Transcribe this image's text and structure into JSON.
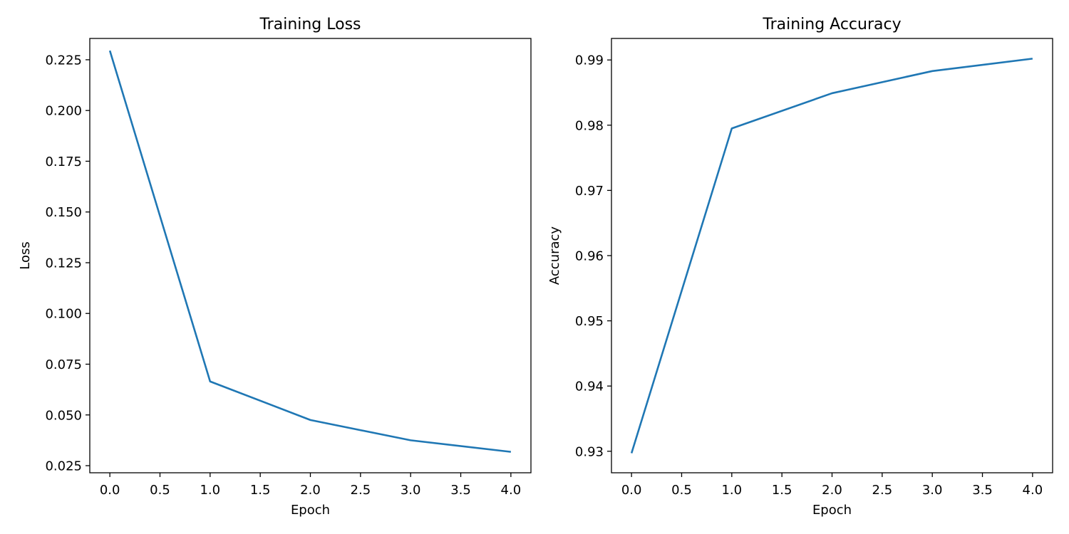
{
  "chart_data": [
    {
      "type": "line",
      "title": "Training Loss",
      "xlabel": "Epoch",
      "ylabel": "Loss",
      "xlim": [
        -0.2,
        4.2
      ],
      "ylim": [
        0.0215,
        0.2355
      ],
      "xticks": [
        0.0,
        0.5,
        1.0,
        1.5,
        2.0,
        2.5,
        3.0,
        3.5,
        4.0
      ],
      "xtick_labels": [
        "0.0",
        "0.5",
        "1.0",
        "1.5",
        "2.0",
        "2.5",
        "3.0",
        "3.5",
        "4.0"
      ],
      "yticks": [
        0.025,
        0.05,
        0.075,
        0.1,
        0.125,
        0.15,
        0.175,
        0.2,
        0.225
      ],
      "ytick_labels": [
        "0.025",
        "0.050",
        "0.075",
        "0.100",
        "0.125",
        "0.150",
        "0.175",
        "0.200",
        "0.225"
      ],
      "grid": false,
      "series": [
        {
          "x": [
            0,
            1,
            2,
            3,
            4
          ],
          "y": [
            0.2295,
            0.0665,
            0.0475,
            0.0375,
            0.0318
          ],
          "color": "#1f77b4"
        }
      ]
    },
    {
      "type": "line",
      "title": "Training Accuracy",
      "xlabel": "Epoch",
      "ylabel": "Accuracy",
      "xlim": [
        -0.2,
        4.2
      ],
      "ylim": [
        0.9267,
        0.9933
      ],
      "xticks": [
        0.0,
        0.5,
        1.0,
        1.5,
        2.0,
        2.5,
        3.0,
        3.5,
        4.0
      ],
      "xtick_labels": [
        "0.0",
        "0.5",
        "1.0",
        "1.5",
        "2.0",
        "2.5",
        "3.0",
        "3.5",
        "4.0"
      ],
      "yticks": [
        0.93,
        0.94,
        0.95,
        0.96,
        0.97,
        0.98,
        0.99
      ],
      "ytick_labels": [
        "0.93",
        "0.94",
        "0.95",
        "0.96",
        "0.97",
        "0.98",
        "0.99"
      ],
      "grid": false,
      "series": [
        {
          "x": [
            0,
            1,
            2,
            3,
            4
          ],
          "y": [
            0.9297,
            0.9795,
            0.9849,
            0.9883,
            0.9902
          ],
          "color": "#1f77b4"
        }
      ]
    }
  ]
}
